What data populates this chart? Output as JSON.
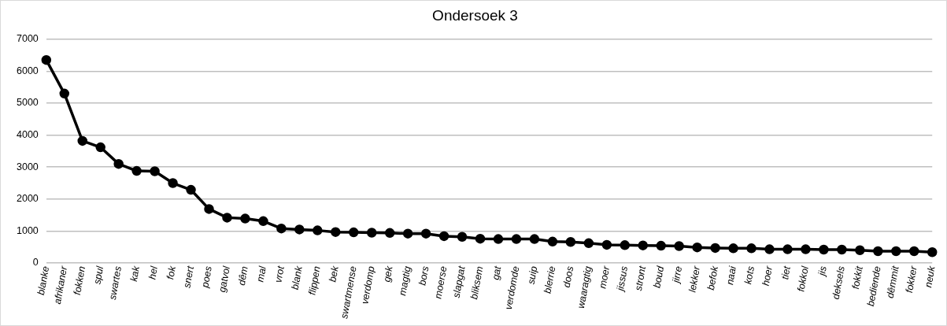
{
  "chart_data": {
    "type": "line",
    "title": "Ondersoek 3",
    "categories": [
      "blanke",
      "afrikaner",
      "fokken",
      "spul",
      "swartes",
      "kak",
      "hel",
      "fok",
      "snert",
      "poes",
      "gatvol",
      "dêm",
      "mal",
      "vrot",
      "blank",
      "flippen",
      "bek",
      "swartmense",
      "verdomp",
      "gek",
      "magtig",
      "bors",
      "moerse",
      "slapgat",
      "bliksem",
      "gat",
      "verdomde",
      "suip",
      "blerrie",
      "doos",
      "waaragtig",
      "moer",
      "jissus",
      "stront",
      "boud",
      "jirre",
      "lekker",
      "befok",
      "naai",
      "kots",
      "hoer",
      "tiet",
      "fokkol",
      "jis",
      "deksels",
      "fokkit",
      "bediende",
      "dêmmit",
      "fokker",
      "neuk"
    ],
    "series": [
      {
        "color": "#000000",
        "values": [
          6350,
          5300,
          3820,
          3620,
          3100,
          2880,
          2870,
          2500,
          2290,
          1690,
          1420,
          1390,
          1310,
          1080,
          1050,
          1020,
          970,
          960,
          950,
          940,
          920,
          920,
          840,
          820,
          760,
          750,
          750,
          750,
          670,
          660,
          620,
          570,
          560,
          550,
          540,
          530,
          490,
          470,
          460,
          460,
          430,
          430,
          430,
          420,
          420,
          400,
          370,
          370,
          370,
          340
        ]
      }
    ],
    "ylim": [
      0,
      7000
    ],
    "yticks": [
      0,
      1000,
      2000,
      3000,
      4000,
      5000,
      6000,
      7000
    ],
    "grid": "y",
    "legend": false,
    "marker": "circle",
    "line_style": "solid"
  }
}
